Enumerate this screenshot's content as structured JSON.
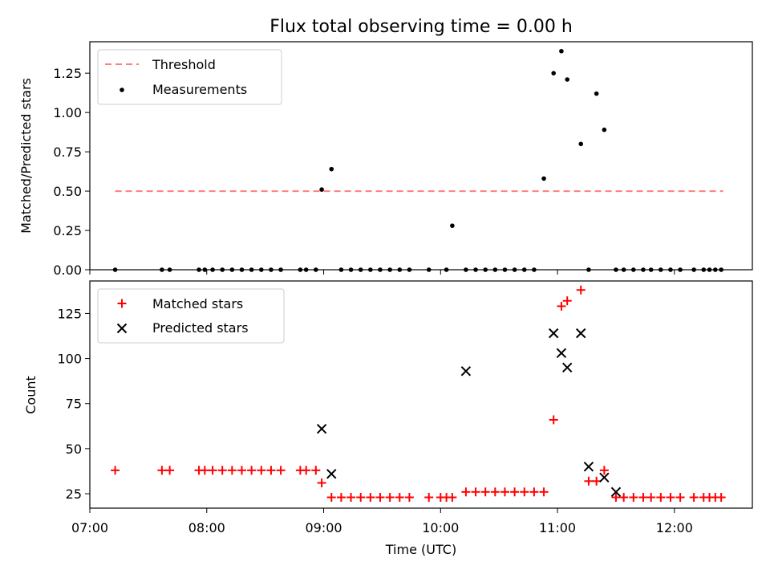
{
  "chart_data": [
    {
      "type": "scatter",
      "title": "Flux total observing time = 0.00 h",
      "ylabel": "Matched/Predicted stars",
      "xlim": [
        "07:00",
        "12:40"
      ],
      "ylim": [
        0,
        1.45
      ],
      "yticks": [
        "0.00",
        "0.25",
        "0.50",
        "0.75",
        "1.00",
        "1.25"
      ],
      "legend_position": "top-left",
      "threshold": {
        "name": "Threshold",
        "value": 0.5,
        "x_start": "07:13",
        "x_end": "12:25",
        "color": "#ff7f7f"
      },
      "series": [
        {
          "name": "Measurements",
          "color": "#000000",
          "marker": "dot",
          "x": [
            "07:13",
            "07:37",
            "07:41",
            "07:56",
            "07:59",
            "08:03",
            "08:08",
            "08:13",
            "08:18",
            "08:23",
            "08:28",
            "08:33",
            "08:38",
            "08:48",
            "08:51",
            "08:56",
            "08:59",
            "09:04",
            "09:09",
            "09:14",
            "09:19",
            "09:24",
            "09:29",
            "09:34",
            "09:39",
            "09:44",
            "09:54",
            "10:03",
            "10:06",
            "10:13",
            "10:18",
            "10:23",
            "10:28",
            "10:33",
            "10:38",
            "10:43",
            "10:48",
            "10:53",
            "10:58",
            "11:02",
            "11:05",
            "11:12",
            "11:16",
            "11:20",
            "11:24",
            "11:30",
            "11:34",
            "11:39",
            "11:44",
            "11:48",
            "11:53",
            "11:58",
            "12:03",
            "12:10",
            "12:15",
            "12:18",
            "12:21",
            "12:24"
          ],
          "y": [
            0,
            0,
            0,
            0,
            0,
            0,
            0,
            0,
            0,
            0,
            0,
            0,
            0,
            0,
            0,
            0,
            0.51,
            0.64,
            0,
            0,
            0,
            0,
            0,
            0,
            0,
            0,
            0,
            0,
            0.28,
            0,
            0,
            0,
            0,
            0,
            0,
            0,
            0,
            0.58,
            1.25,
            1.39,
            1.21,
            0.8,
            0,
            1.12,
            0.89,
            0,
            0,
            0,
            0,
            0,
            0,
            0,
            0,
            0,
            0,
            0,
            0,
            0
          ]
        }
      ]
    },
    {
      "type": "scatter",
      "xlabel": "Time (UTC)",
      "ylabel": "Count",
      "xlim": [
        "07:00",
        "12:40"
      ],
      "ylim": [
        17,
        143
      ],
      "xticks": [
        "07:00",
        "08:00",
        "09:00",
        "10:00",
        "11:00",
        "12:00"
      ],
      "yticks": [
        "25",
        "50",
        "75",
        "100",
        "125"
      ],
      "legend_position": "top-left",
      "series": [
        {
          "name": "Matched stars",
          "color": "#ff0000",
          "marker": "plus",
          "x": [
            "07:13",
            "07:37",
            "07:41",
            "07:56",
            "07:59",
            "08:03",
            "08:08",
            "08:13",
            "08:18",
            "08:23",
            "08:28",
            "08:33",
            "08:38",
            "08:48",
            "08:51",
            "08:56",
            "08:59",
            "09:04",
            "09:09",
            "09:14",
            "09:19",
            "09:24",
            "09:29",
            "09:34",
            "09:39",
            "09:44",
            "09:54",
            "10:00",
            "10:03",
            "10:06",
            "10:13",
            "10:18",
            "10:23",
            "10:28",
            "10:33",
            "10:38",
            "10:43",
            "10:48",
            "10:53",
            "10:58",
            "11:02",
            "11:05",
            "11:12",
            "11:16",
            "11:20",
            "11:24",
            "11:30",
            "11:34",
            "11:39",
            "11:44",
            "11:48",
            "11:53",
            "11:58",
            "12:03",
            "12:10",
            "12:15",
            "12:18",
            "12:21",
            "12:24"
          ],
          "y": [
            38,
            38,
            38,
            38,
            38,
            38,
            38,
            38,
            38,
            38,
            38,
            38,
            38,
            38,
            38,
            38,
            31,
            23,
            23,
            23,
            23,
            23,
            23,
            23,
            23,
            23,
            23,
            23,
            23,
            23,
            26,
            26,
            26,
            26,
            26,
            26,
            26,
            26,
            26,
            66,
            129,
            132,
            138,
            32,
            32,
            38,
            23,
            23,
            23,
            23,
            23,
            23,
            23,
            23,
            23,
            23,
            23,
            23,
            23
          ]
        },
        {
          "name": "Predicted stars",
          "color": "#000000",
          "marker": "x",
          "x": [
            "08:59",
            "09:04",
            "10:13",
            "10:58",
            "11:02",
            "11:05",
            "11:12",
            "11:16",
            "11:24",
            "11:30"
          ],
          "y": [
            61,
            36,
            93,
            114,
            103,
            95,
            114,
            40,
            34,
            26
          ]
        }
      ]
    }
  ]
}
